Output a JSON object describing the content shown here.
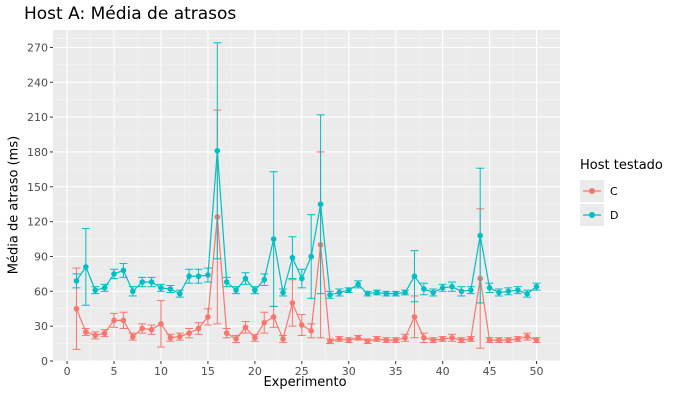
{
  "chart_data": {
    "type": "line",
    "title": "Host A: Média de atrasos",
    "xlabel": "Experimento",
    "ylabel": "Média de atraso (ms)",
    "xlim": [
      -1.5,
      52.5
    ],
    "ylim": [
      0,
      285
    ],
    "xticks": [
      0,
      5,
      10,
      15,
      20,
      25,
      30,
      35,
      40,
      45,
      50
    ],
    "yticks": [
      0,
      30,
      60,
      90,
      120,
      150,
      180,
      210,
      240,
      270
    ],
    "legend_title": "Host testado",
    "legend_position": "right",
    "grid": true,
    "series": [
      {
        "name": "C",
        "color": "#F8766D",
        "x": [
          1,
          2,
          3,
          4,
          5,
          6,
          7,
          8,
          9,
          10,
          11,
          12,
          13,
          14,
          15,
          16,
          17,
          18,
          19,
          20,
          21,
          22,
          23,
          24,
          25,
          26,
          27,
          28,
          29,
          30,
          31,
          32,
          33,
          34,
          35,
          36,
          37,
          38,
          39,
          40,
          41,
          42,
          43,
          44,
          45,
          46,
          47,
          48,
          49,
          50
        ],
        "y": [
          45,
          25,
          22,
          24,
          35,
          35,
          21,
          28,
          27,
          32,
          20,
          21,
          24,
          28,
          38,
          124,
          24,
          19,
          29,
          20,
          33,
          38,
          19,
          50,
          31,
          26,
          100,
          17,
          19,
          18,
          20,
          17,
          19,
          18,
          18,
          20,
          38,
          20,
          18,
          19,
          20,
          18,
          19,
          71,
          18,
          18,
          18,
          19,
          21,
          18
        ],
        "err": [
          35,
          3,
          3,
          3,
          6,
          7,
          3,
          4,
          4,
          20,
          3,
          3,
          4,
          5,
          7,
          92,
          4,
          3,
          5,
          3,
          9,
          9,
          3,
          20,
          9,
          6,
          80,
          2,
          2,
          2,
          2,
          2,
          2,
          2,
          2,
          3,
          18,
          4,
          2,
          2,
          3,
          2,
          2,
          60,
          2,
          2,
          2,
          2,
          3,
          2
        ]
      },
      {
        "name": "D",
        "color": "#00BFC4",
        "x": [
          1,
          2,
          3,
          4,
          5,
          6,
          7,
          8,
          9,
          10,
          11,
          12,
          13,
          14,
          15,
          16,
          17,
          18,
          19,
          20,
          21,
          22,
          23,
          24,
          25,
          26,
          27,
          28,
          29,
          30,
          31,
          32,
          33,
          34,
          35,
          36,
          37,
          38,
          39,
          40,
          41,
          42,
          43,
          44,
          45,
          46,
          47,
          48,
          49,
          50
        ],
        "y": [
          69,
          81,
          61,
          63,
          75,
          78,
          60,
          68,
          68,
          63,
          62,
          58,
          73,
          73,
          74,
          181,
          68,
          61,
          71,
          61,
          70,
          105,
          59,
          89,
          71,
          90,
          135,
          57,
          59,
          61,
          66,
          58,
          59,
          58,
          58,
          59,
          73,
          62,
          59,
          63,
          64,
          60,
          61,
          108,
          63,
          59,
          60,
          61,
          58,
          64
        ],
        "err": [
          6,
          33,
          3,
          3,
          4,
          6,
          4,
          4,
          4,
          3,
          3,
          3,
          6,
          6,
          6,
          93,
          4,
          3,
          5,
          3,
          5,
          58,
          3,
          18,
          8,
          36,
          77,
          3,
          3,
          2,
          3,
          2,
          2,
          2,
          2,
          2,
          22,
          5,
          3,
          3,
          4,
          4,
          3,
          58,
          4,
          3,
          3,
          3,
          3,
          3
        ]
      }
    ]
  }
}
